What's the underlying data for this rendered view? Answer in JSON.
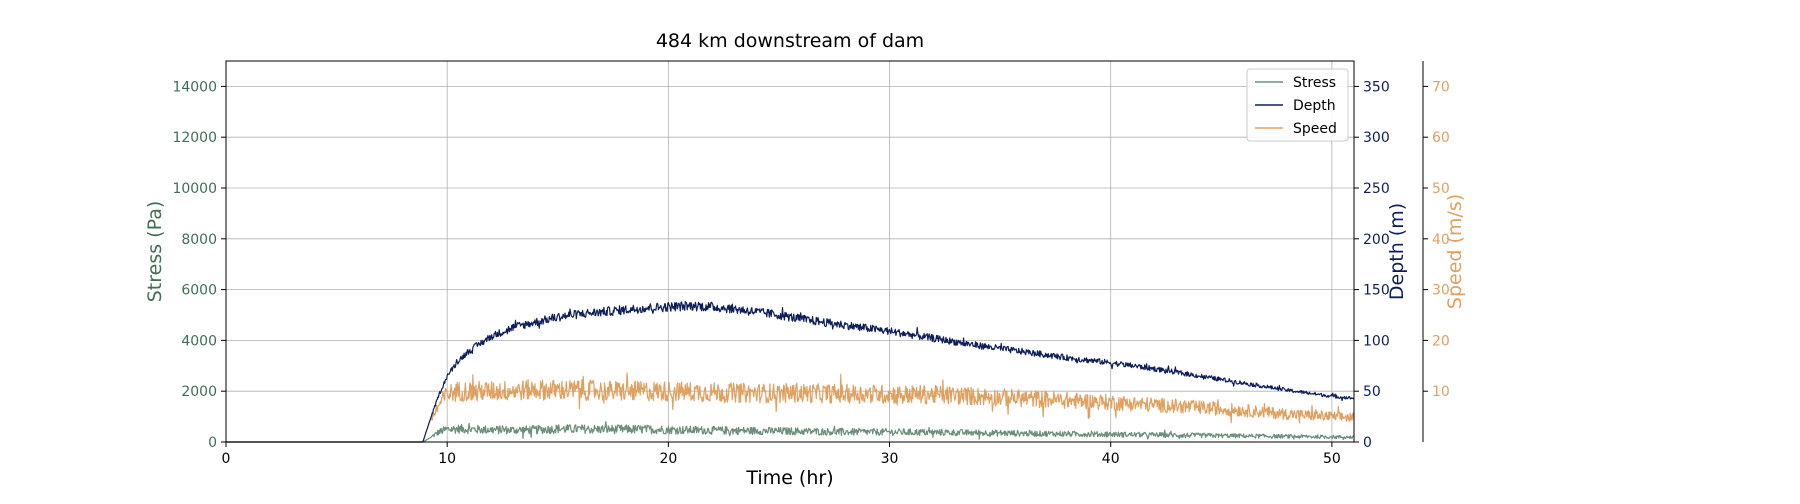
{
  "chart_data": {
    "type": "line",
    "title": "484 km downstream of dam",
    "xlabel": "Time (hr)",
    "xlim": [
      0,
      51
    ],
    "x_ticks": [
      0,
      10,
      20,
      30,
      40,
      50
    ],
    "grid": true,
    "legend_position": "top-right",
    "axes": {
      "stress": {
        "label": "Stress (Pa)",
        "color": "#3f6f55",
        "ylim": [
          0,
          15000
        ],
        "ticks": [
          0,
          2000,
          4000,
          6000,
          8000,
          10000,
          12000,
          14000
        ]
      },
      "depth": {
        "label": "Depth (m)",
        "color": "#0e1e5b",
        "ylim": [
          0,
          375
        ],
        "ticks": [
          0,
          50,
          100,
          150,
          200,
          250,
          300,
          350
        ]
      },
      "speed": {
        "label": "Speed (m/s)",
        "color": "#e0a060",
        "ylim": [
          0,
          75
        ],
        "ticks": [
          10,
          20,
          30,
          40,
          50,
          60,
          70
        ]
      }
    },
    "series": [
      {
        "name": "Stress",
        "axis": "stress",
        "color": "#6b8f7a",
        "noise": 0.35,
        "x": [
          0,
          8.9,
          9.2,
          9.6,
          10.0,
          10.5,
          11,
          12,
          13,
          14,
          15,
          16,
          17,
          18,
          19,
          20,
          21,
          22,
          23,
          24,
          25,
          26,
          28,
          30,
          32,
          34,
          36,
          38,
          40,
          42,
          44,
          46,
          48,
          50,
          51
        ],
        "y": [
          0,
          0,
          150,
          380,
          500,
          520,
          500,
          480,
          470,
          480,
          520,
          510,
          500,
          500,
          500,
          480,
          470,
          460,
          450,
          440,
          430,
          420,
          400,
          390,
          380,
          360,
          340,
          320,
          300,
          280,
          260,
          240,
          220,
          200,
          190
        ]
      },
      {
        "name": "Depth",
        "axis": "depth",
        "color": "#0e1e5b",
        "noise": 0.035,
        "x": [
          0,
          8.9,
          9.2,
          9.6,
          10,
          10.5,
          11,
          12,
          13,
          14,
          15,
          16,
          17,
          18,
          19,
          20,
          21,
          22,
          23,
          24,
          25,
          26,
          27,
          28,
          29,
          30,
          32,
          34,
          36,
          38,
          40,
          42,
          44,
          46,
          48,
          50,
          51
        ],
        "y": [
          0,
          0,
          20,
          45,
          65,
          80,
          90,
          104,
          113,
          118,
          123,
          126,
          128,
          130,
          132,
          133,
          134,
          133,
          131,
          128,
          125,
          121,
          118,
          115,
          112,
          109,
          102,
          95,
          89,
          83,
          78,
          72,
          65,
          58,
          51,
          45,
          43
        ]
      },
      {
        "name": "Speed",
        "axis": "speed",
        "color": "#e0a060",
        "noise": 0.2,
        "x": [
          0,
          8.9,
          9.2,
          9.6,
          10,
          10.5,
          11,
          12,
          14,
          16,
          18,
          20,
          22,
          24,
          26,
          28,
          30,
          32,
          34,
          36,
          38,
          40,
          42,
          44,
          46,
          48,
          50,
          51
        ],
        "y": [
          0,
          0,
          4,
          7,
          9.5,
          10,
          10,
          10,
          10.3,
          10.2,
          10,
          10,
          9.8,
          9.6,
          9.6,
          9.5,
          9.4,
          9.3,
          9,
          8.6,
          8.2,
          7.8,
          7.3,
          6.8,
          6.2,
          5.5,
          5,
          4.8
        ]
      }
    ]
  }
}
